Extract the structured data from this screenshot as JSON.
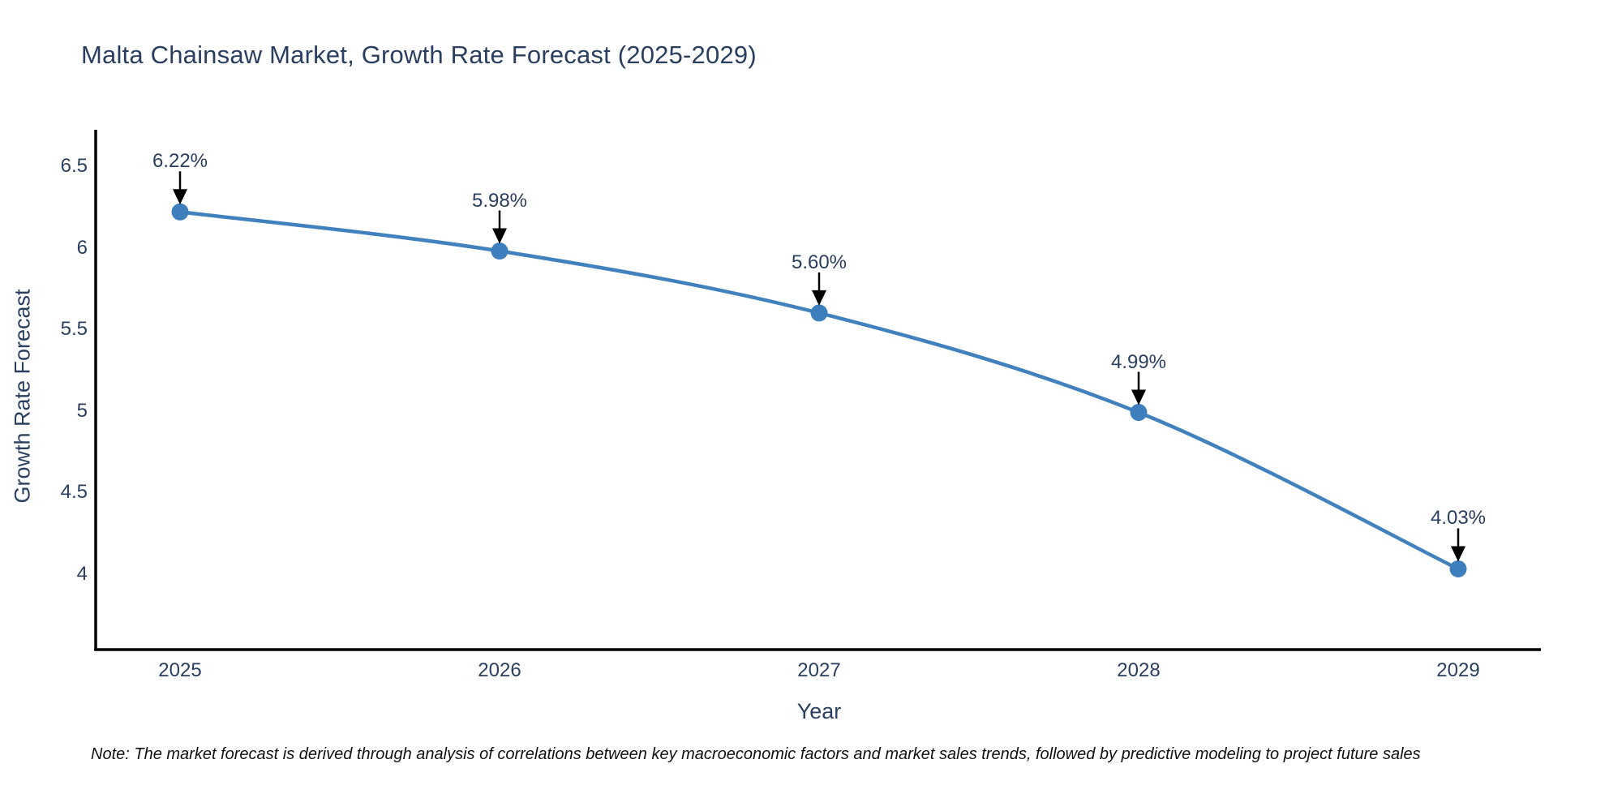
{
  "title": "Malta Chainsaw Market, Growth Rate Forecast (2025-2029)",
  "chart_data": {
    "type": "line",
    "title": "Malta Chainsaw Market, Growth Rate Forecast (2025-2029)",
    "xlabel": "Year",
    "ylabel": "Growth Rate Forecast",
    "categories": [
      "2025",
      "2026",
      "2027",
      "2028",
      "2029"
    ],
    "series": [
      {
        "name": "Growth Rate Forecast",
        "values": [
          6.22,
          5.98,
          5.6,
          4.99,
          4.03
        ],
        "point_labels": [
          "6.22%",
          "5.98%",
          "5.60%",
          "4.99%",
          "4.03%"
        ]
      }
    ],
    "yticks": [
      4,
      4.5,
      5,
      5.5,
      6,
      6.5
    ],
    "ylim": [
      3.53,
      6.72
    ],
    "grid": false,
    "legend_position": "none",
    "line_shape": "spline",
    "annotations_style": "value label with black arrow pointing down to marker",
    "colors": {
      "line": "#4181bd",
      "marker": "#3d7ebc",
      "arrow": "#000000",
      "text": "#2a3f5f",
      "axis": "#000000",
      "background": "#ffffff"
    }
  },
  "footnote": "Note: The market forecast is derived through analysis of correlations between key macroeconomic factors and market sales trends, followed by predictive modeling to project future sales"
}
